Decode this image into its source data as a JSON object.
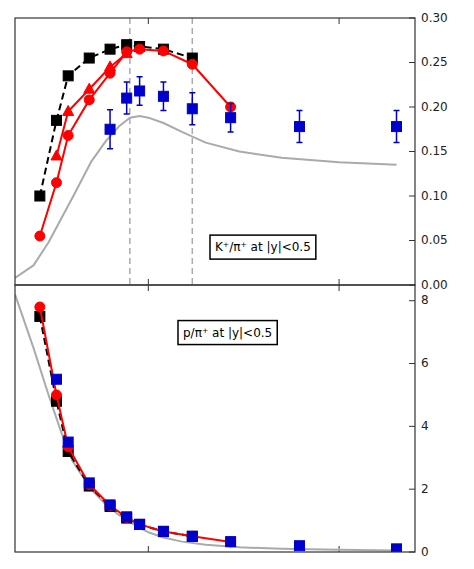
{
  "chart_data": [
    {
      "type": "line",
      "log": "x",
      "xlim": [
        2.0,
        250.0
      ],
      "xticks": [
        10,
        100
      ],
      "ylim": [
        0.0,
        0.3
      ],
      "yticks": [
        {
          "value": 0.0,
          "label": "0.00"
        },
        0.05,
        {
          "value": 0.1,
          "label": "0.10"
        },
        0.15,
        {
          "value": 0.2,
          "label": "0.20"
        },
        0.25,
        {
          "value": 0.3,
          "label": "0.30"
        }
      ],
      "tick_labels": "y",
      "annotation": "K⁺/π⁺ at |y|<0.5",
      "vlines": [
        {
          "x": 8.0,
          "color": "#aaaaaa"
        },
        {
          "x": 17.0,
          "color": "#aaaaaa"
        }
      ],
      "series": [
        {
          "color": "#aaaaaa",
          "marker": "none",
          "line_style": "solid",
          "x": [
            2.0,
            2.5,
            3.0,
            4.0,
            5.0,
            6.0,
            7.0,
            8.0,
            9.0,
            10.0,
            12.0,
            15.0,
            20.0,
            30.0,
            50.0,
            100.0,
            200.0
          ],
          "values": [
            0.008,
            0.022,
            0.048,
            0.098,
            0.138,
            0.162,
            0.178,
            0.188,
            0.19,
            0.188,
            0.182,
            0.172,
            0.16,
            0.15,
            0.143,
            0.138,
            0.135
          ]
        },
        {
          "color": "#000000",
          "marker": "square",
          "line_style": "dashed",
          "x": [
            2.7,
            3.3,
            3.8,
            4.9,
            6.3,
            7.7,
            9.0,
            12.0,
            17.0
          ],
          "values": [
            0.1,
            0.185,
            0.235,
            0.255,
            0.265,
            0.27,
            0.268,
            0.265,
            0.255
          ]
        },
        {
          "color": "#ff0000",
          "marker": "triangle",
          "line_style": "solid",
          "x": [
            3.3,
            3.8,
            4.9,
            6.3,
            7.7
          ],
          "values": [
            0.145,
            0.195,
            0.22,
            0.245,
            0.26
          ]
        },
        {
          "color": "#ff0000",
          "marker": "circle",
          "line_style": "solid",
          "x": [
            2.7,
            3.3,
            3.8,
            4.9,
            6.3,
            7.7,
            9.0,
            12.0,
            17.0,
            27.0
          ],
          "values": [
            0.055,
            0.115,
            0.168,
            0.208,
            0.238,
            0.262,
            0.265,
            0.263,
            0.248,
            0.2
          ]
        },
        {
          "color": "#0000cc",
          "marker": "square",
          "line_style": "none",
          "x": [
            6.3,
            7.7,
            9.0,
            12.0,
            17.0,
            27.0,
            62.0,
            200.0
          ],
          "values": [
            0.175,
            0.21,
            0.218,
            0.212,
            0.198,
            0.188,
            0.178,
            0.178
          ],
          "errors": [
            0.022,
            0.018,
            0.016,
            0.016,
            0.018,
            0.016,
            0.018,
            0.018
          ]
        }
      ]
    },
    {
      "type": "line",
      "log": "x",
      "xlim": [
        2.0,
        250.0
      ],
      "xticks": [
        10,
        100
      ],
      "ylim": [
        0.0,
        8.5
      ],
      "yticks": [
        0,
        2,
        4,
        6,
        8
      ],
      "tick_labels": "y",
      "annotation": "p/π⁺ at |y|<0.5",
      "series": [
        {
          "color": "#aaaaaa",
          "marker": "none",
          "line_style": "solid",
          "x": [
            2.0,
            2.5,
            3.0,
            3.5,
            4.0,
            5.0,
            6.0,
            7.0,
            8.0,
            9.0,
            10.0,
            12.0,
            15.0,
            20.0,
            30.0,
            50.0,
            100.0,
            200.0
          ],
          "values": [
            8.2,
            6.5,
            5.0,
            3.8,
            2.9,
            2.0,
            1.5,
            1.18,
            0.95,
            0.77,
            0.63,
            0.46,
            0.33,
            0.23,
            0.15,
            0.1,
            0.07,
            0.05
          ]
        },
        {
          "color": "#000000",
          "marker": "square",
          "line_style": "dashed",
          "x": [
            2.7,
            3.3,
            3.8,
            4.9,
            6.3,
            7.7,
            9.0,
            12.0,
            17.0
          ],
          "values": [
            7.5,
            4.8,
            3.2,
            2.1,
            1.45,
            1.08,
            0.88,
            0.65,
            0.5
          ]
        },
        {
          "color": "#ff0000",
          "marker": "circle",
          "line_style": "solid",
          "x": [
            2.7,
            3.3,
            3.8,
            4.9,
            6.3,
            7.7,
            9.0,
            12.0,
            17.0,
            27.0
          ],
          "values": [
            7.8,
            5.0,
            3.35,
            2.15,
            1.48,
            1.1,
            0.88,
            0.65,
            0.5,
            0.32
          ]
        },
        {
          "color": "#0000cc",
          "marker": "square",
          "line_style": "none",
          "x": [
            3.3,
            3.8,
            4.9,
            6.3,
            7.7,
            9.0,
            12.0,
            17.0,
            27.0,
            62.0,
            200.0
          ],
          "values": [
            5.5,
            3.5,
            2.2,
            1.5,
            1.12,
            0.88,
            0.66,
            0.5,
            0.33,
            0.2,
            0.1
          ]
        }
      ]
    }
  ]
}
